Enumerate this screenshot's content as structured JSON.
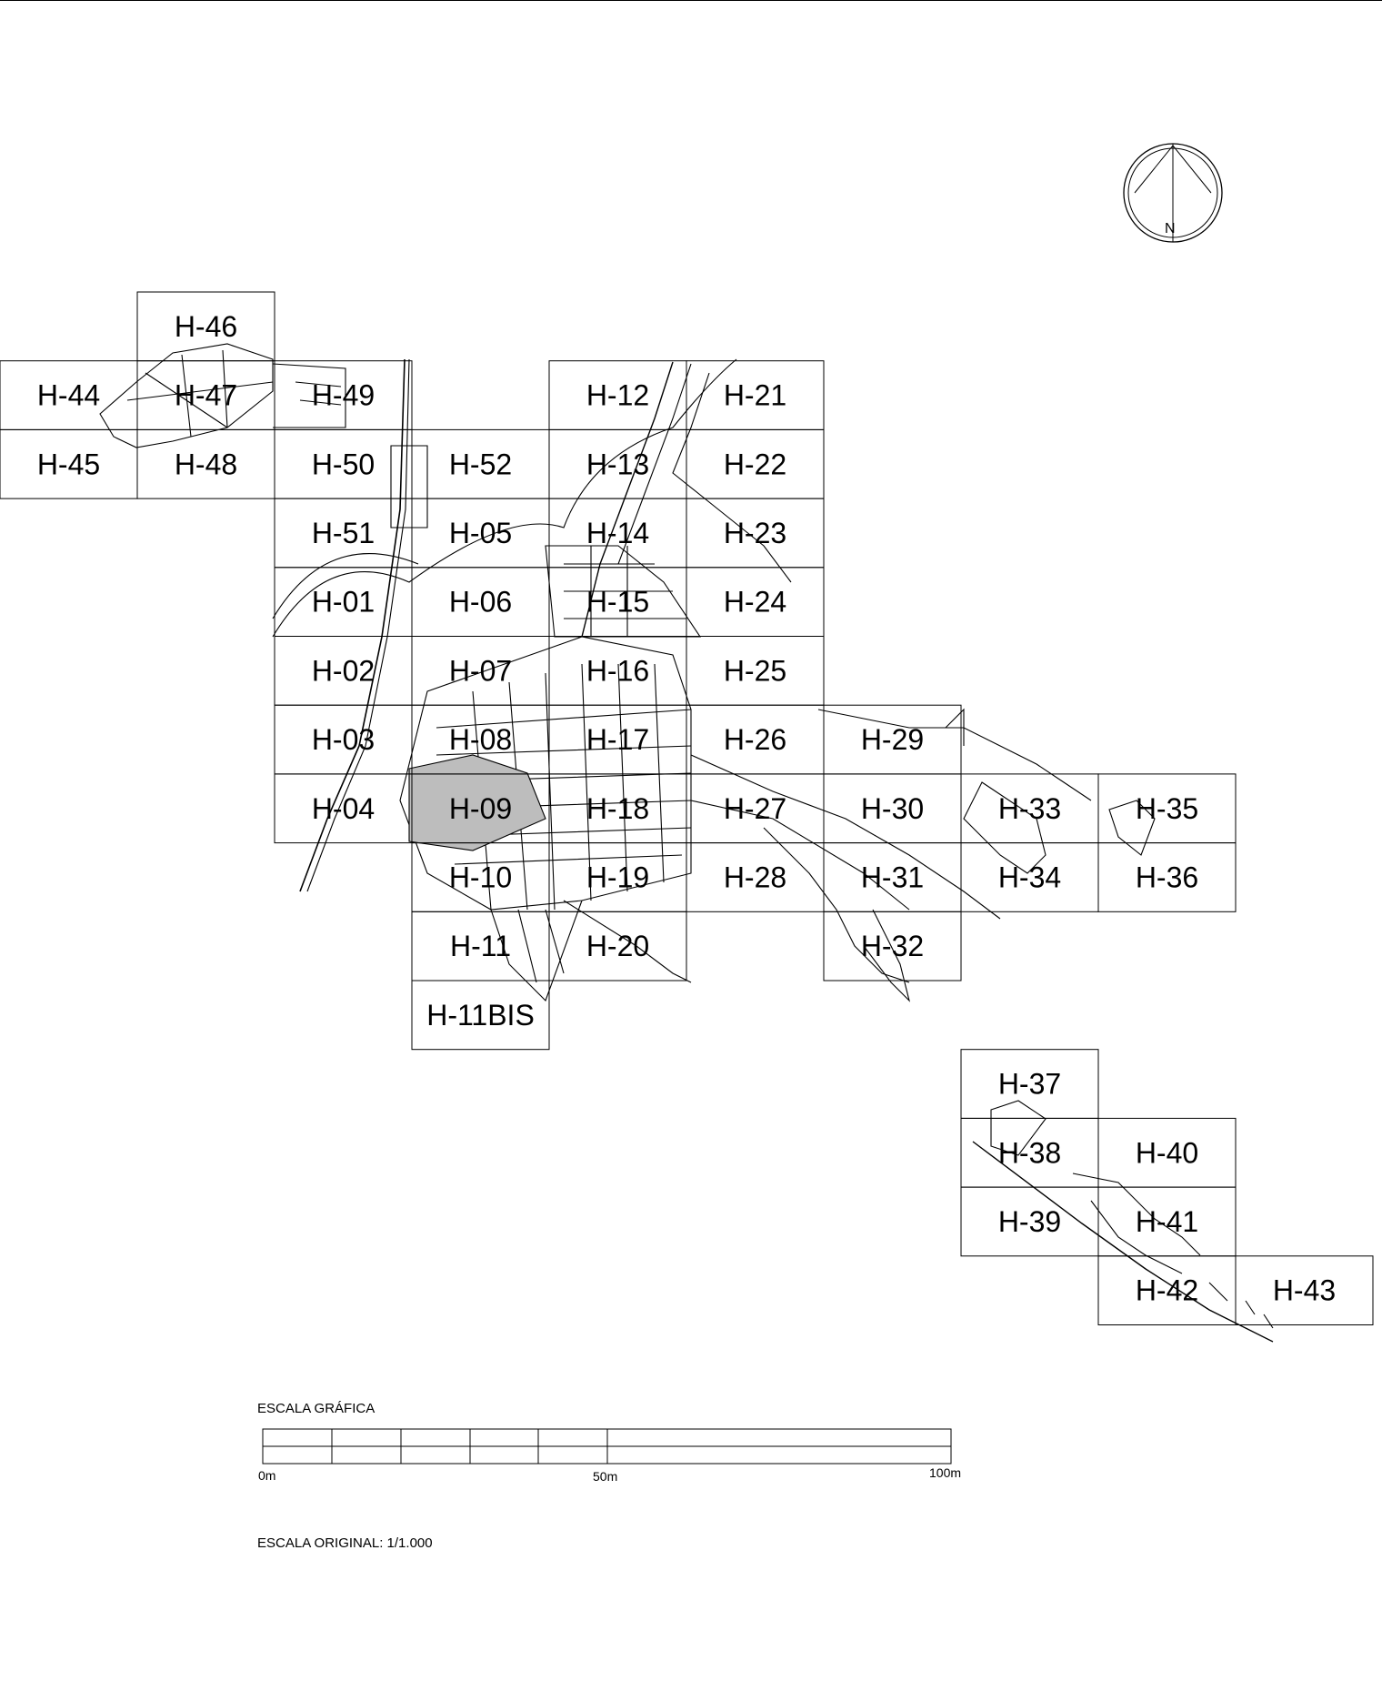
{
  "compass": {
    "north_label": "N"
  },
  "scale_bar": {
    "title": "ESCALA GRÁFICA",
    "label_start": "0m",
    "label_mid": "50m",
    "label_end": "100m"
  },
  "original_scale": "ESCALA ORIGINAL: 1/1.000",
  "sheets": [
    {
      "id": "H-46",
      "col": 1,
      "row": 0
    },
    {
      "id": "H-44",
      "col": 0,
      "row": 1
    },
    {
      "id": "H-47",
      "col": 1,
      "row": 1
    },
    {
      "id": "H-49",
      "col": 2,
      "row": 1
    },
    {
      "id": "H-12",
      "col": 4,
      "row": 1
    },
    {
      "id": "H-21",
      "col": 5,
      "row": 1
    },
    {
      "id": "H-45",
      "col": 0,
      "row": 2
    },
    {
      "id": "H-48",
      "col": 1,
      "row": 2
    },
    {
      "id": "H-50",
      "col": 2,
      "row": 2
    },
    {
      "id": "H-52",
      "col": 3,
      "row": 2
    },
    {
      "id": "H-13",
      "col": 4,
      "row": 2
    },
    {
      "id": "H-22",
      "col": 5,
      "row": 2
    },
    {
      "id": "H-51",
      "col": 2,
      "row": 3
    },
    {
      "id": "H-05",
      "col": 3,
      "row": 3
    },
    {
      "id": "H-14",
      "col": 4,
      "row": 3
    },
    {
      "id": "H-23",
      "col": 5,
      "row": 3
    },
    {
      "id": "H-01",
      "col": 2,
      "row": 4
    },
    {
      "id": "H-06",
      "col": 3,
      "row": 4
    },
    {
      "id": "H-15",
      "col": 4,
      "row": 4
    },
    {
      "id": "H-24",
      "col": 5,
      "row": 4
    },
    {
      "id": "H-02",
      "col": 2,
      "row": 5
    },
    {
      "id": "H-07",
      "col": 3,
      "row": 5
    },
    {
      "id": "H-16",
      "col": 4,
      "row": 5
    },
    {
      "id": "H-25",
      "col": 5,
      "row": 5
    },
    {
      "id": "H-03",
      "col": 2,
      "row": 6
    },
    {
      "id": "H-08",
      "col": 3,
      "row": 6
    },
    {
      "id": "H-17",
      "col": 4,
      "row": 6
    },
    {
      "id": "H-26",
      "col": 5,
      "row": 6
    },
    {
      "id": "H-29",
      "col": 6,
      "row": 6
    },
    {
      "id": "H-04",
      "col": 2,
      "row": 7
    },
    {
      "id": "H-09",
      "col": 3,
      "row": 7
    },
    {
      "id": "H-18",
      "col": 4,
      "row": 7
    },
    {
      "id": "H-27",
      "col": 5,
      "row": 7
    },
    {
      "id": "H-30",
      "col": 6,
      "row": 7
    },
    {
      "id": "H-33",
      "col": 7,
      "row": 7
    },
    {
      "id": "H-35",
      "col": 8,
      "row": 7
    },
    {
      "id": "H-10",
      "col": 3,
      "row": 8
    },
    {
      "id": "H-19",
      "col": 4,
      "row": 8
    },
    {
      "id": "H-28",
      "col": 5,
      "row": 8
    },
    {
      "id": "H-31",
      "col": 6,
      "row": 8
    },
    {
      "id": "H-34",
      "col": 7,
      "row": 8
    },
    {
      "id": "H-36",
      "col": 8,
      "row": 8
    },
    {
      "id": "H-11",
      "col": 3,
      "row": 9
    },
    {
      "id": "H-20",
      "col": 4,
      "row": 9
    },
    {
      "id": "H-32",
      "col": 6,
      "row": 9
    },
    {
      "id": "H-11BIS",
      "col": 3,
      "row": 10
    },
    {
      "id": "H-37",
      "col": 7,
      "row": 11
    },
    {
      "id": "H-38",
      "col": 7,
      "row": 12
    },
    {
      "id": "H-40",
      "col": 8,
      "row": 12
    },
    {
      "id": "H-39",
      "col": 7,
      "row": 13
    },
    {
      "id": "H-41",
      "col": 8,
      "row": 13
    },
    {
      "id": "H-42",
      "col": 8,
      "row": 14
    },
    {
      "id": "H-43",
      "col": 9,
      "row": 14
    }
  ]
}
